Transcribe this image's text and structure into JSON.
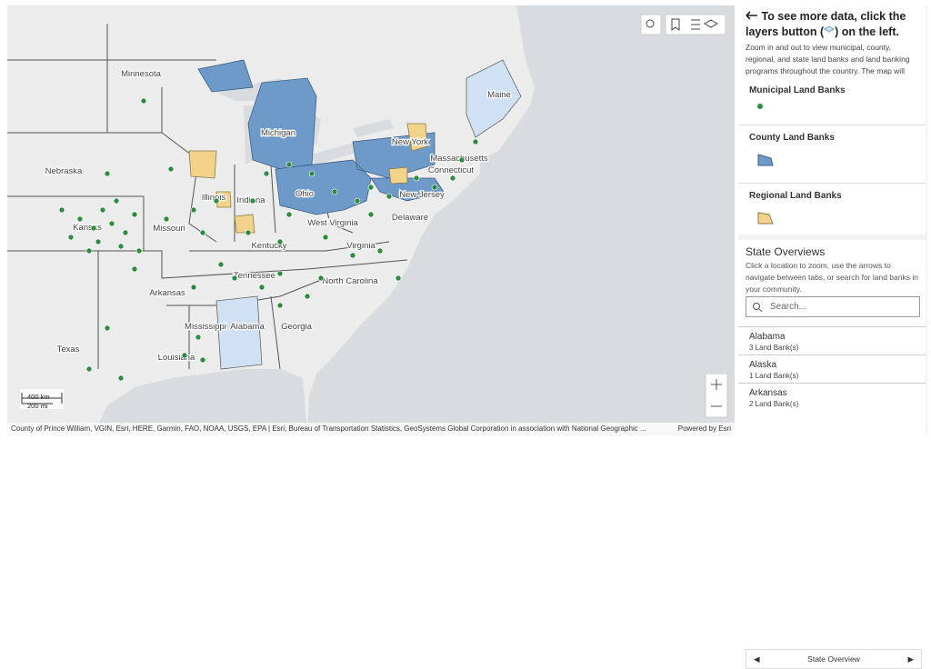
{
  "map": {
    "state_labels": [
      "Minnesota",
      "Michigan",
      "Maine",
      "New York",
      "Massachusetts",
      "Connecticut",
      "Nebraska",
      "Illinois",
      "Indiana",
      "Ohio",
      "New Jersey",
      "Kansas",
      "Missouri",
      "West Virginia",
      "Delaware",
      "Kentucky",
      "Virginia",
      "Tennessee",
      "North Carolina",
      "Arkansas",
      "Mississippi",
      "Alabama",
      "Georgia",
      "Louisiana",
      "Texas"
    ],
    "scale_km": "400 km",
    "scale_mi": "200 mi",
    "attribution": "County of Prince William, VGIN, Esri, HERE, Garmin, FAO, NOAA, USGS, EPA | Esri, Bureau of Transportation Statistics, GeoSystems Global Corporation in association with National Geographic ...",
    "powered_by": "Powered by Esri"
  },
  "panel": {
    "title_before": "To see more data, click the layers button (",
    "title_after": ") on the left.",
    "intro": "Zoom in and out to view municipal, county, regional, and state land banks and land banking programs throughout the country. The map will",
    "legend": [
      "Municipal Land Banks",
      "County Land Banks",
      "Regional Land Banks"
    ],
    "overview_title": "State Overviews",
    "overview_text": "Click a location to zoom, use the arrows to navigate between tabs, or search for land banks in your community.",
    "search_placeholder": "Search...",
    "states": [
      {
        "name": "Alabama",
        "count": "3 Land Bank(s)"
      },
      {
        "name": "Alaska",
        "count": "1 Land Bank(s)"
      },
      {
        "name": "Arkansas",
        "count": "2 Land Bank(s)"
      }
    ],
    "footer": "State Overview"
  }
}
